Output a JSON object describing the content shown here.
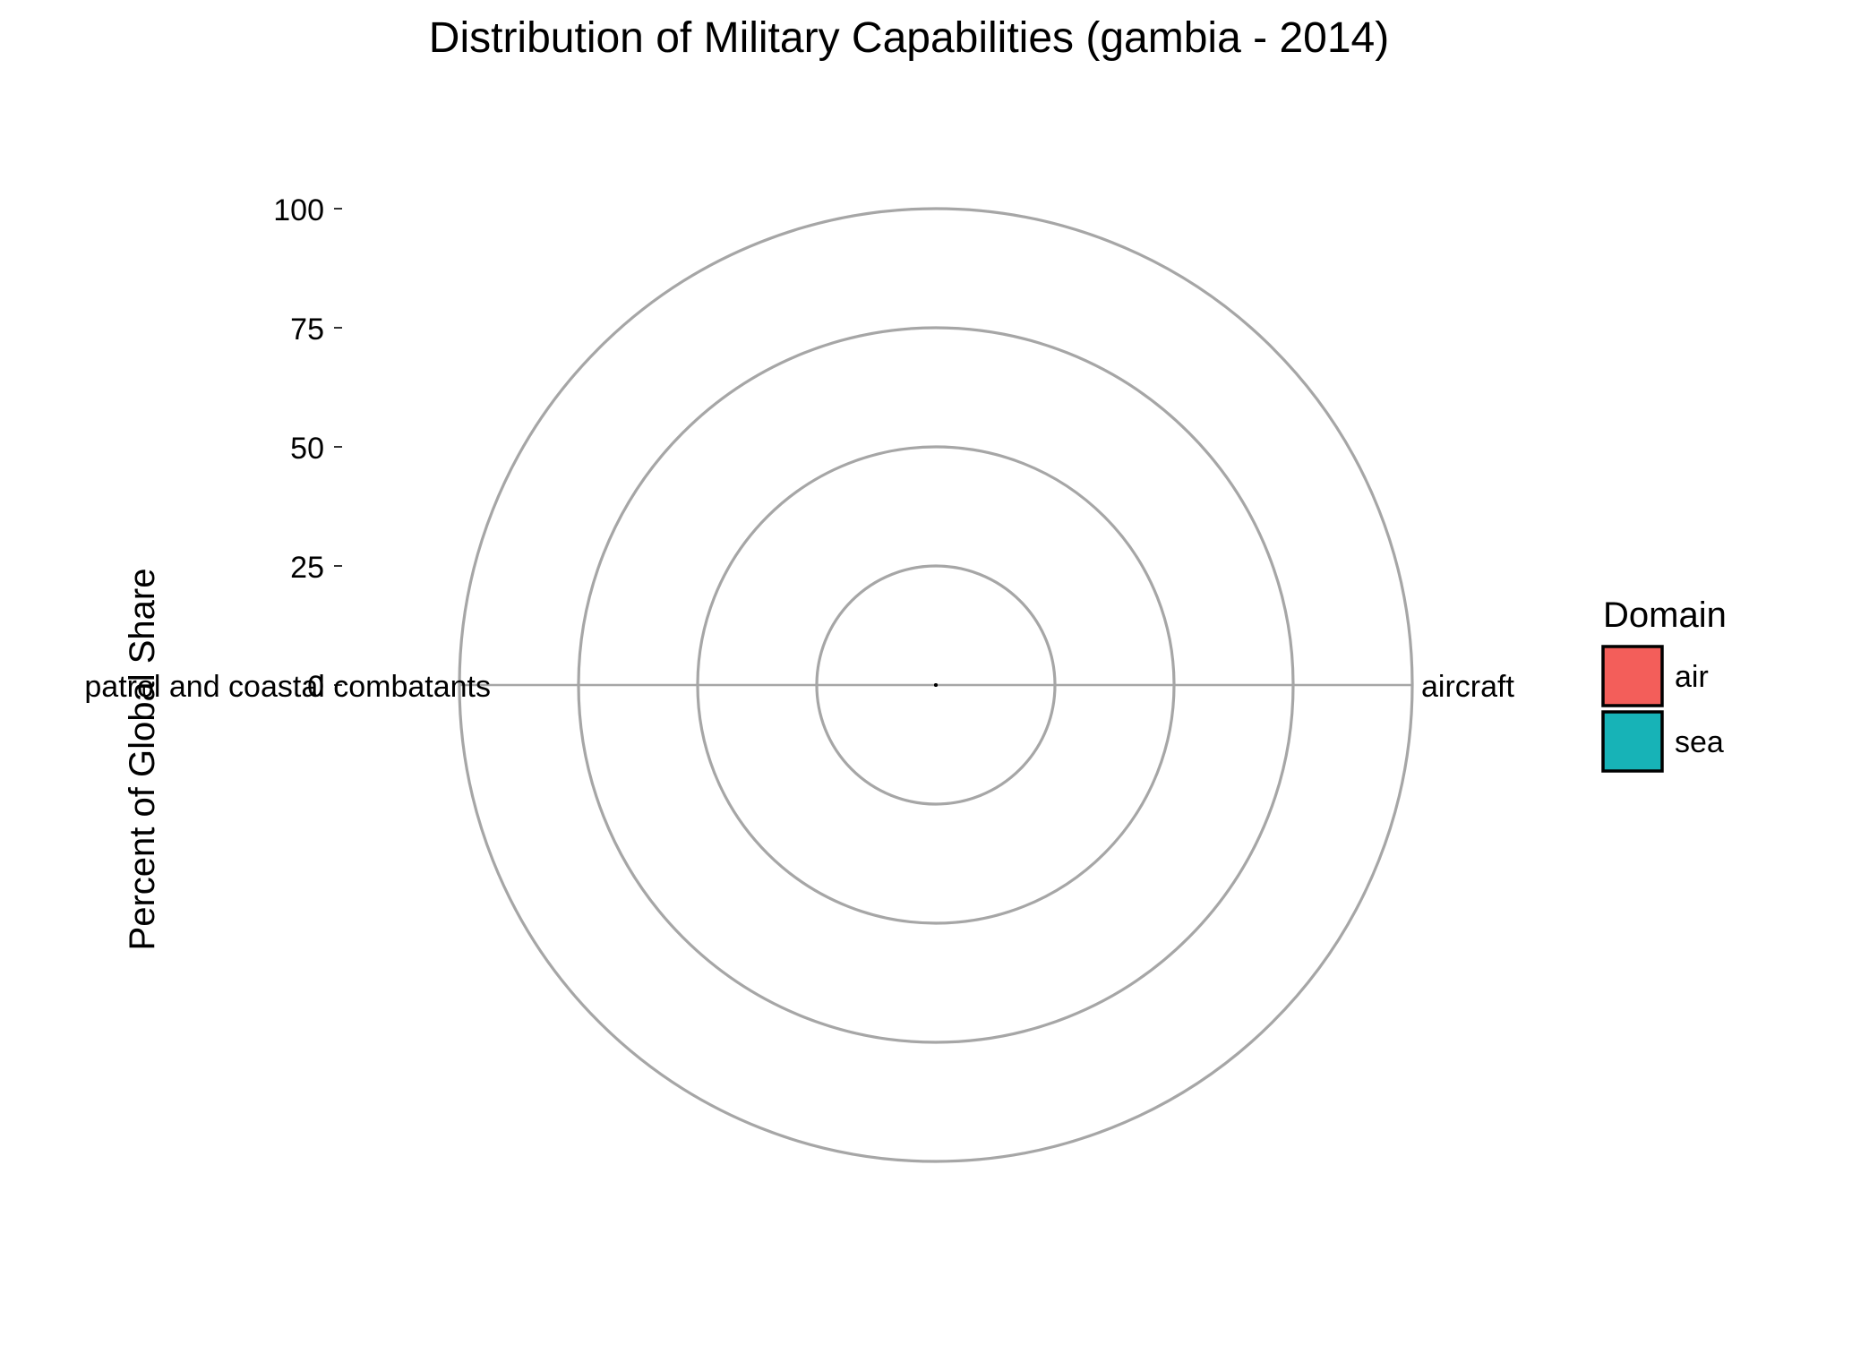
{
  "chart_data": {
    "type": "bar",
    "coord": "polar",
    "title": "Distribution of Military Capabilities (gambia - 2014)",
    "xlabel": "",
    "ylabel": "Percent of Global Share",
    "categories": [
      "patrol and coastal combatants",
      "aircraft"
    ],
    "series": [
      {
        "name": "air",
        "category": "aircraft",
        "value": 0
      },
      {
        "name": "sea",
        "category": "patrol and coastal combatants",
        "value": 0
      }
    ],
    "ylim": [
      0,
      100
    ],
    "yticks": [
      0,
      25,
      50,
      75,
      100
    ],
    "grid": true,
    "legend": {
      "title": "Domain",
      "position": "right",
      "entries": [
        {
          "label": "air",
          "color": "#F35E5A"
        },
        {
          "label": "sea",
          "color": "#17B3B7"
        }
      ]
    },
    "colors": {
      "grid": "#A6A6A6",
      "text": "#000000",
      "air": "#F35E5A",
      "sea": "#17B3B7"
    }
  }
}
